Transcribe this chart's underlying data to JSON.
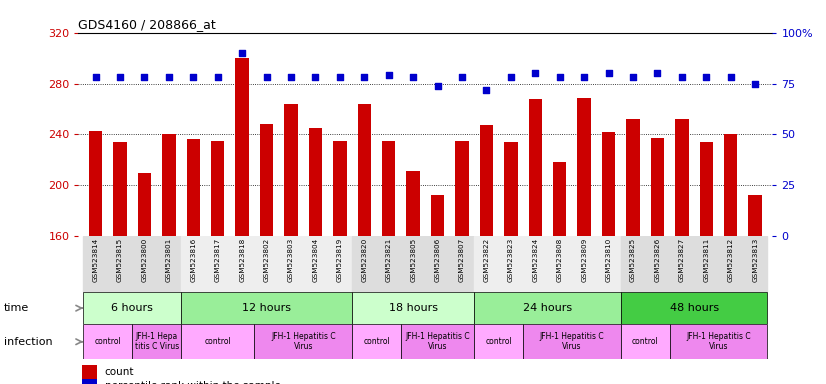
{
  "title": "GDS4160 / 208866_at",
  "samples": [
    "GSM523814",
    "GSM523815",
    "GSM523800",
    "GSM523801",
    "GSM523816",
    "GSM523817",
    "GSM523818",
    "GSM523802",
    "GSM523803",
    "GSM523804",
    "GSM523819",
    "GSM523820",
    "GSM523821",
    "GSM523805",
    "GSM523806",
    "GSM523807",
    "GSM523822",
    "GSM523823",
    "GSM523824",
    "GSM523808",
    "GSM523809",
    "GSM523810",
    "GSM523825",
    "GSM523826",
    "GSM523827",
    "GSM523811",
    "GSM523812",
    "GSM523813"
  ],
  "counts": [
    243,
    234,
    210,
    240,
    236,
    235,
    300,
    248,
    264,
    245,
    235,
    264,
    235,
    211,
    192,
    235,
    247,
    234,
    268,
    218,
    269,
    242,
    252,
    237,
    252,
    234,
    240,
    192
  ],
  "percentile_ranks": [
    78,
    78,
    78,
    78,
    78,
    78,
    90,
    78,
    78,
    78,
    78,
    78,
    79,
    78,
    74,
    78,
    72,
    78,
    80,
    78,
    78,
    80,
    78,
    80,
    78,
    78,
    78,
    75
  ],
  "ylim_left": [
    160,
    320
  ],
  "ylim_right": [
    0,
    100
  ],
  "yticks_left": [
    160,
    200,
    240,
    280,
    320
  ],
  "yticks_right": [
    0,
    25,
    50,
    75,
    100
  ],
  "bar_color": "#cc0000",
  "dot_color": "#0000cc",
  "time_groups": [
    {
      "label": "6 hours",
      "start": 0,
      "end": 4
    },
    {
      "label": "12 hours",
      "start": 4,
      "end": 11
    },
    {
      "label": "18 hours",
      "start": 11,
      "end": 16
    },
    {
      "label": "24 hours",
      "start": 16,
      "end": 22
    },
    {
      "label": "48 hours",
      "start": 22,
      "end": 28
    }
  ],
  "time_colors": [
    "#ccffcc",
    "#99ee99",
    "#ccffcc",
    "#99ee99",
    "#44cc44"
  ],
  "infection_groups": [
    {
      "label": "control",
      "start": 0,
      "end": 2
    },
    {
      "label": "JFH-1 Hepa\ntitis C Virus",
      "start": 2,
      "end": 4
    },
    {
      "label": "control",
      "start": 4,
      "end": 7
    },
    {
      "label": "JFH-1 Hepatitis C\nVirus",
      "start": 7,
      "end": 11
    },
    {
      "label": "control",
      "start": 11,
      "end": 13
    },
    {
      "label": "JFH-1 Hepatitis C\nVirus",
      "start": 13,
      "end": 16
    },
    {
      "label": "control",
      "start": 16,
      "end": 18
    },
    {
      "label": "JFH-1 Hepatitis C\nVirus",
      "start": 18,
      "end": 22
    },
    {
      "label": "control",
      "start": 22,
      "end": 24
    },
    {
      "label": "JFH-1 Hepatitis C\nVirus",
      "start": 24,
      "end": 28
    }
  ],
  "inf_colors": [
    "#ffaaff",
    "#ee88ee"
  ],
  "left_axis_color": "#cc0000",
  "right_axis_color": "#0000cc",
  "bg_color": "#ffffff",
  "tick_bg_colors": [
    "#dddddd",
    "#eeeeee"
  ]
}
